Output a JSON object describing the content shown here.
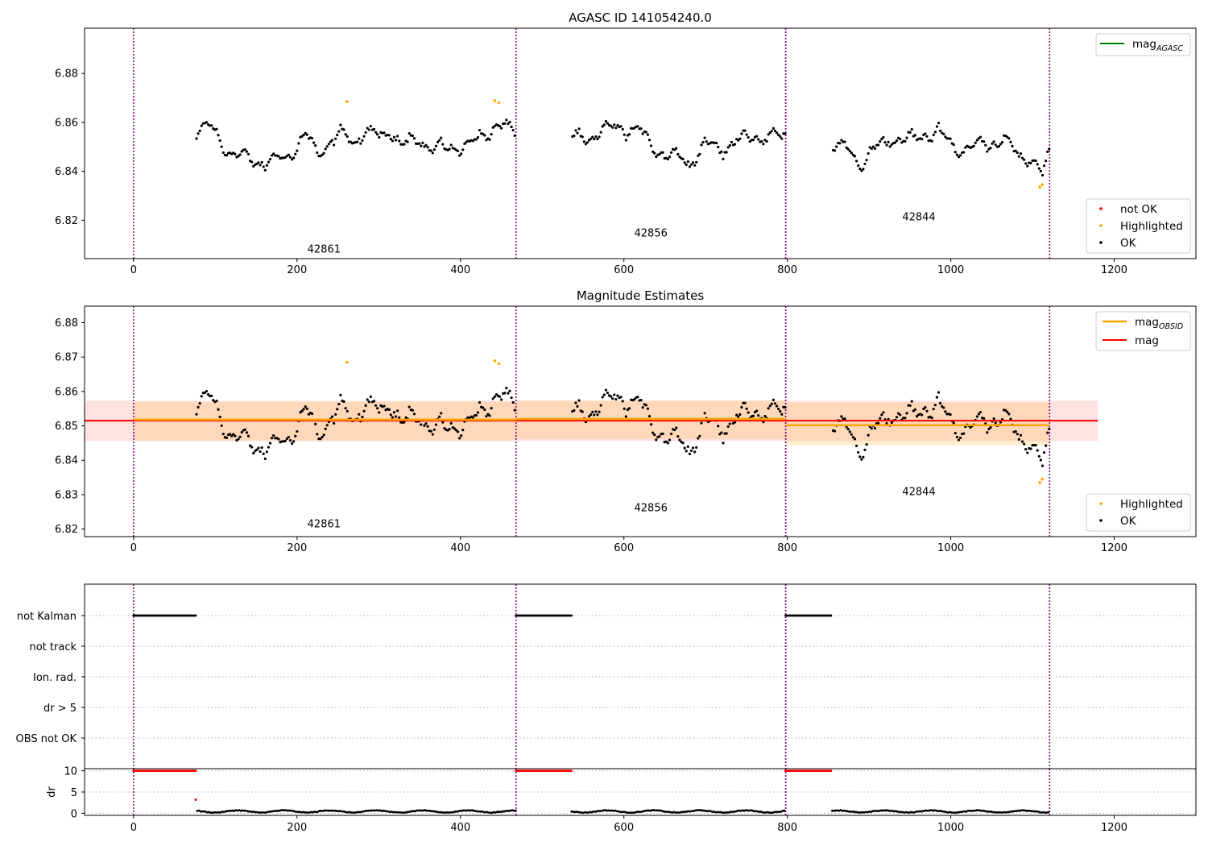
{
  "chart_data": [
    {
      "type": "scatter",
      "title": "AGASC ID 141054240.0",
      "xlim": [
        -60,
        1300
      ],
      "ylim": [
        6.8043,
        6.8985
      ],
      "xticks": [
        0,
        200,
        400,
        600,
        800,
        1000,
        1200
      ],
      "yticks": [
        6.82,
        6.84,
        6.86,
        6.88
      ],
      "grid": false,
      "observations": [
        {
          "obsid": "42861",
          "start": 0,
          "end": 468,
          "label_x": 233,
          "label_y": 6.8067
        },
        {
          "obsid": "42856",
          "start": 468,
          "end": 798,
          "label_x": 633,
          "label_y": 6.8133
        },
        {
          "obsid": "42844",
          "start": 798,
          "end": 1121,
          "label_x": 961,
          "label_y": 6.82
        }
      ],
      "lines": [
        {
          "name": "mag_AGASC",
          "value": 6.804,
          "x": [
            -60,
            1180
          ],
          "color": "#008000"
        }
      ],
      "series": [
        {
          "name": "not OK",
          "color": "#ff0000",
          "points": []
        },
        {
          "name": "Highlighted",
          "color": "#ffa500",
          "points": [
            [
              261,
              6.8685
            ],
            [
              442,
              6.8689
            ],
            [
              447,
              6.8681
            ],
            [
              1109,
              6.8335
            ],
            [
              1112,
              6.8345
            ]
          ]
        },
        {
          "name": "OK",
          "color": "#000000",
          "description": "dense light-curve samples every ~2 s",
          "segments": [
            {
              "x_start": 76,
              "x_end": 468,
              "profile": [
                [
                  76,
                  6.856
                ],
                [
                  95,
                  6.858
                ],
                [
                  110,
                  6.851
                ],
                [
                  125,
                  6.846
                ],
                [
                  145,
                  6.845
                ],
                [
                  165,
                  6.843
                ],
                [
                  185,
                  6.846
                ],
                [
                  200,
                  6.85
                ],
                [
                  210,
                  6.855
                ],
                [
                  225,
                  6.847
                ],
                [
                  240,
                  6.852
                ],
                [
                  255,
                  6.855
                ],
                [
                  270,
                  6.852
                ],
                [
                  285,
                  6.857
                ],
                [
                  300,
                  6.853
                ],
                [
                  315,
                  6.857
                ],
                [
                  330,
                  6.851
                ],
                [
                  350,
                  6.853
                ],
                [
                  370,
                  6.849
                ],
                [
                  385,
                  6.849
                ],
                [
                  405,
                  6.851
                ],
                [
                  425,
                  6.853
                ],
                [
                  445,
                  6.86
                ],
                [
                  468,
                  6.855
                ]
              ]
            },
            {
              "x_start": 536,
              "x_end": 798,
              "profile": [
                [
                  536,
                  6.853
                ],
                [
                  555,
                  6.853
                ],
                [
                  575,
                  6.857
                ],
                [
                  600,
                  6.858
                ],
                [
                  620,
                  6.856
                ],
                [
                  640,
                  6.849
                ],
                [
                  660,
                  6.846
                ],
                [
                  680,
                  6.844
                ],
                [
                  700,
                  6.851
                ],
                [
                  720,
                  6.849
                ],
                [
                  740,
                  6.853
                ],
                [
                  760,
                  6.854
                ],
                [
                  780,
                  6.854
                ],
                [
                  798,
                  6.854
                ]
              ]
            },
            {
              "x_start": 855,
              "x_end": 1121,
              "profile": [
                [
                  855,
                  6.85
                ],
                [
                  875,
                  6.849
                ],
                [
                  890,
                  6.843
                ],
                [
                  905,
                  6.848
                ],
                [
                  925,
                  6.854
                ],
                [
                  945,
                  6.852
                ],
                [
                  965,
                  6.855
                ],
                [
                  985,
                  6.856
                ],
                [
                  1005,
                  6.85
                ],
                [
                  1025,
                  6.849
                ],
                [
                  1045,
                  6.852
                ],
                [
                  1065,
                  6.853
                ],
                [
                  1085,
                  6.846
                ],
                [
                  1100,
                  6.845
                ],
                [
                  1112,
                  6.838
                ],
                [
                  1121,
                  6.848
                ]
              ]
            }
          ]
        }
      ],
      "legend": {
        "top-right": [
          "mag_AGASC"
        ],
        "bottom-right": [
          "not OK",
          "Highlighted",
          "OK"
        ]
      }
    },
    {
      "type": "scatter",
      "title": "Magnitude Estimates",
      "xlim": [
        -60,
        1300
      ],
      "ylim": [
        6.8178,
        6.8848
      ],
      "xticks": [
        0,
        200,
        400,
        600,
        800,
        1000,
        1200
      ],
      "yticks": [
        6.82,
        6.83,
        6.84,
        6.85,
        6.86,
        6.87,
        6.88
      ],
      "grid": false,
      "observations": [
        {
          "obsid": "42861",
          "start": 0,
          "end": 468,
          "label_x": 233,
          "label_y": 6.8205
        },
        {
          "obsid": "42856",
          "start": 468,
          "end": 798,
          "label_x": 633,
          "label_y": 6.8252
        },
        {
          "obsid": "42844",
          "start": 798,
          "end": 1121,
          "label_x": 961,
          "label_y": 6.8299
        }
      ],
      "lines": [
        {
          "name": "mag",
          "value": 6.8515,
          "x": [
            -60,
            1180
          ],
          "color": "#ff0000",
          "band": [
            6.8455,
            6.8573
          ]
        },
        {
          "name": "mag_OBSID",
          "color": "#ffa500",
          "steps": [
            {
              "x": [
                0,
                468
              ],
              "value": 6.8518,
              "band": [
                6.8458,
                6.857
              ]
            },
            {
              "x": [
                468,
                798
              ],
              "value": 6.852,
              "band": [
                6.8462,
                6.8574
              ]
            },
            {
              "x": [
                798,
                1121
              ],
              "value": 6.8502,
              "band": [
                6.8443,
                6.8568
              ]
            }
          ]
        }
      ],
      "series": [
        {
          "name": "Highlighted",
          "color": "#ffa500",
          "points": [
            [
              261,
              6.8685
            ],
            [
              442,
              6.8689
            ],
            [
              447,
              6.8681
            ],
            [
              1109,
              6.8335
            ],
            [
              1112,
              6.8345
            ]
          ]
        },
        {
          "name": "OK",
          "color": "#000000",
          "description": "same samples as top panel"
        }
      ],
      "legend": {
        "top-right": [
          "mag_OBSID",
          "mag"
        ],
        "bottom-right": [
          "Highlighted",
          "OK"
        ]
      }
    },
    {
      "type": "scatter",
      "title": "",
      "xlim": [
        -60,
        1300
      ],
      "categories": [
        "not Kalman",
        "not track",
        "Ion. rad.",
        "dr > 5",
        "OBS not OK"
      ],
      "flags": [
        {
          "category": "not Kalman",
          "ranges": [
            [
              0,
              76
            ],
            [
              468,
              536
            ],
            [
              798,
              855
            ]
          ]
        }
      ]
    },
    {
      "type": "scatter",
      "title": "",
      "ylabel": "dr",
      "xlim": [
        -60,
        1300
      ],
      "ylim": [
        -0.5,
        10.5
      ],
      "xticks": [
        0,
        200,
        400,
        600,
        800,
        1000,
        1200
      ],
      "yticks": [
        0,
        5,
        10
      ],
      "grid": true,
      "series": [
        {
          "name": "dr (not OK)",
          "color": "#ff0000",
          "value": 10,
          "ranges": [
            [
              0,
              76
            ],
            [
              468,
              536
            ],
            [
              798,
              855
            ]
          ],
          "extra_point": [
            76,
            3.2
          ]
        },
        {
          "name": "dr",
          "color": "#000000",
          "value_range": [
            0.0,
            0.8
          ],
          "ranges": [
            [
              78,
              468
            ],
            [
              536,
              798
            ],
            [
              855,
              1121
            ]
          ]
        }
      ]
    }
  ]
}
